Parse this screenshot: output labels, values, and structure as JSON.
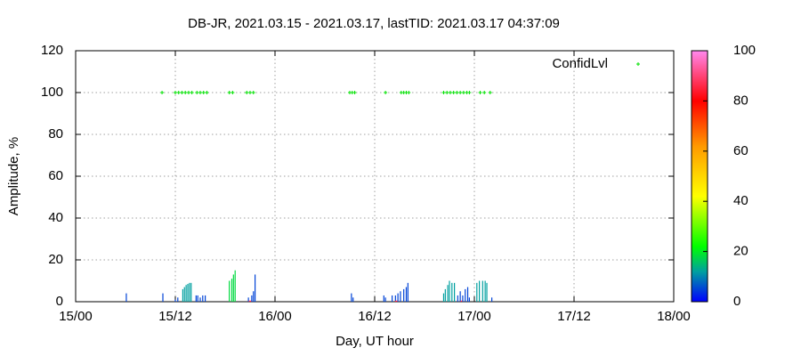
{
  "chart_data": {
    "type": "impulse",
    "title": "DB-JR, 2021.03.15 - 2021.03.17, lastTID: 2021.03.17 04:37:09",
    "x_label": "Day, UT hour",
    "y_label": "Amplitude, %",
    "xlim": [
      0,
      72
    ],
    "xticks": [
      {
        "value": 0,
        "label": "15/00"
      },
      {
        "value": 12,
        "label": "15/12"
      },
      {
        "value": 24,
        "label": "16/00"
      },
      {
        "value": 36,
        "label": "16/12"
      },
      {
        "value": 48,
        "label": "17/00"
      },
      {
        "value": 60,
        "label": "17/12"
      },
      {
        "value": 72,
        "label": "18/00"
      }
    ],
    "ylim": [
      0,
      120
    ],
    "yticks": [
      0,
      20,
      40,
      60,
      80,
      100,
      120
    ],
    "cblim": [
      0,
      100
    ],
    "cbticks": [
      0,
      20,
      40,
      60,
      80,
      100
    ],
    "grid": true,
    "legend": "top-right",
    "amplitude": {
      "x": [
        6.1,
        10.5,
        12.0,
        12.3,
        12.9,
        13.1,
        13.3,
        13.5,
        13.7,
        13.9,
        14.5,
        14.7,
        15.0,
        15.3,
        15.6,
        18.5,
        18.8,
        19.0,
        19.2,
        20.8,
        21.0,
        21.2,
        21.4,
        21.6,
        33.2,
        33.4,
        37.1,
        37.3,
        38.1,
        38.5,
        38.6,
        38.8,
        39.1,
        39.5,
        39.8,
        40.0,
        44.3,
        44.5,
        44.8,
        45.0,
        45.3,
        45.6,
        46.0,
        46.3,
        46.5,
        46.6,
        46.9,
        47.2,
        47.4,
        48.3,
        48.6,
        49.0,
        49.3,
        49.5,
        50.1
      ],
      "values": [
        4,
        4,
        1,
        2,
        6,
        7,
        8,
        8.5,
        9,
        9,
        3,
        3,
        2,
        3,
        3,
        10,
        11,
        13,
        15,
        2,
        0.5,
        3,
        5,
        13,
        4,
        2,
        3,
        2,
        3,
        3,
        0.5,
        4,
        5,
        6,
        7,
        9,
        4,
        6,
        8,
        10,
        9,
        9,
        3,
        5,
        0.5,
        3,
        6,
        7,
        2,
        9,
        10,
        10,
        10,
        9,
        2
      ],
      "confidence": [
        5,
        5,
        5,
        5,
        12,
        12,
        12,
        12,
        12,
        12,
        5,
        5,
        5,
        5,
        5,
        18,
        18,
        18,
        18,
        5,
        85,
        5,
        5,
        5,
        5,
        5,
        5,
        5,
        5,
        5,
        85,
        5,
        5,
        5,
        5,
        5,
        12,
        12,
        12,
        12,
        12,
        12,
        5,
        5,
        85,
        5,
        5,
        5,
        5,
        12,
        12,
        12,
        12,
        12,
        5
      ]
    },
    "series": [
      {
        "name": "ConfidLvl",
        "color": "#00e000",
        "x": [
          10.4,
          12.0,
          12.4,
          12.8,
          13.2,
          13.6,
          14.0,
          14.6,
          15.0,
          15.4,
          15.8,
          18.5,
          18.9,
          20.6,
          21.0,
          21.4,
          33.0,
          33.3,
          33.6,
          37.3,
          39.2,
          39.5,
          39.8,
          40.1,
          44.3,
          44.7,
          45.1,
          45.5,
          45.9,
          46.3,
          46.7,
          47.1,
          47.4,
          48.7,
          49.2,
          49.9
        ],
        "values": [
          100,
          100,
          100,
          100,
          100,
          100,
          100,
          100,
          100,
          100,
          100,
          100,
          100,
          100,
          100,
          100,
          100,
          100,
          100,
          100,
          100,
          100,
          100,
          100,
          100,
          100,
          100,
          100,
          100,
          100,
          100,
          100,
          100,
          100,
          100,
          100
        ]
      }
    ]
  }
}
